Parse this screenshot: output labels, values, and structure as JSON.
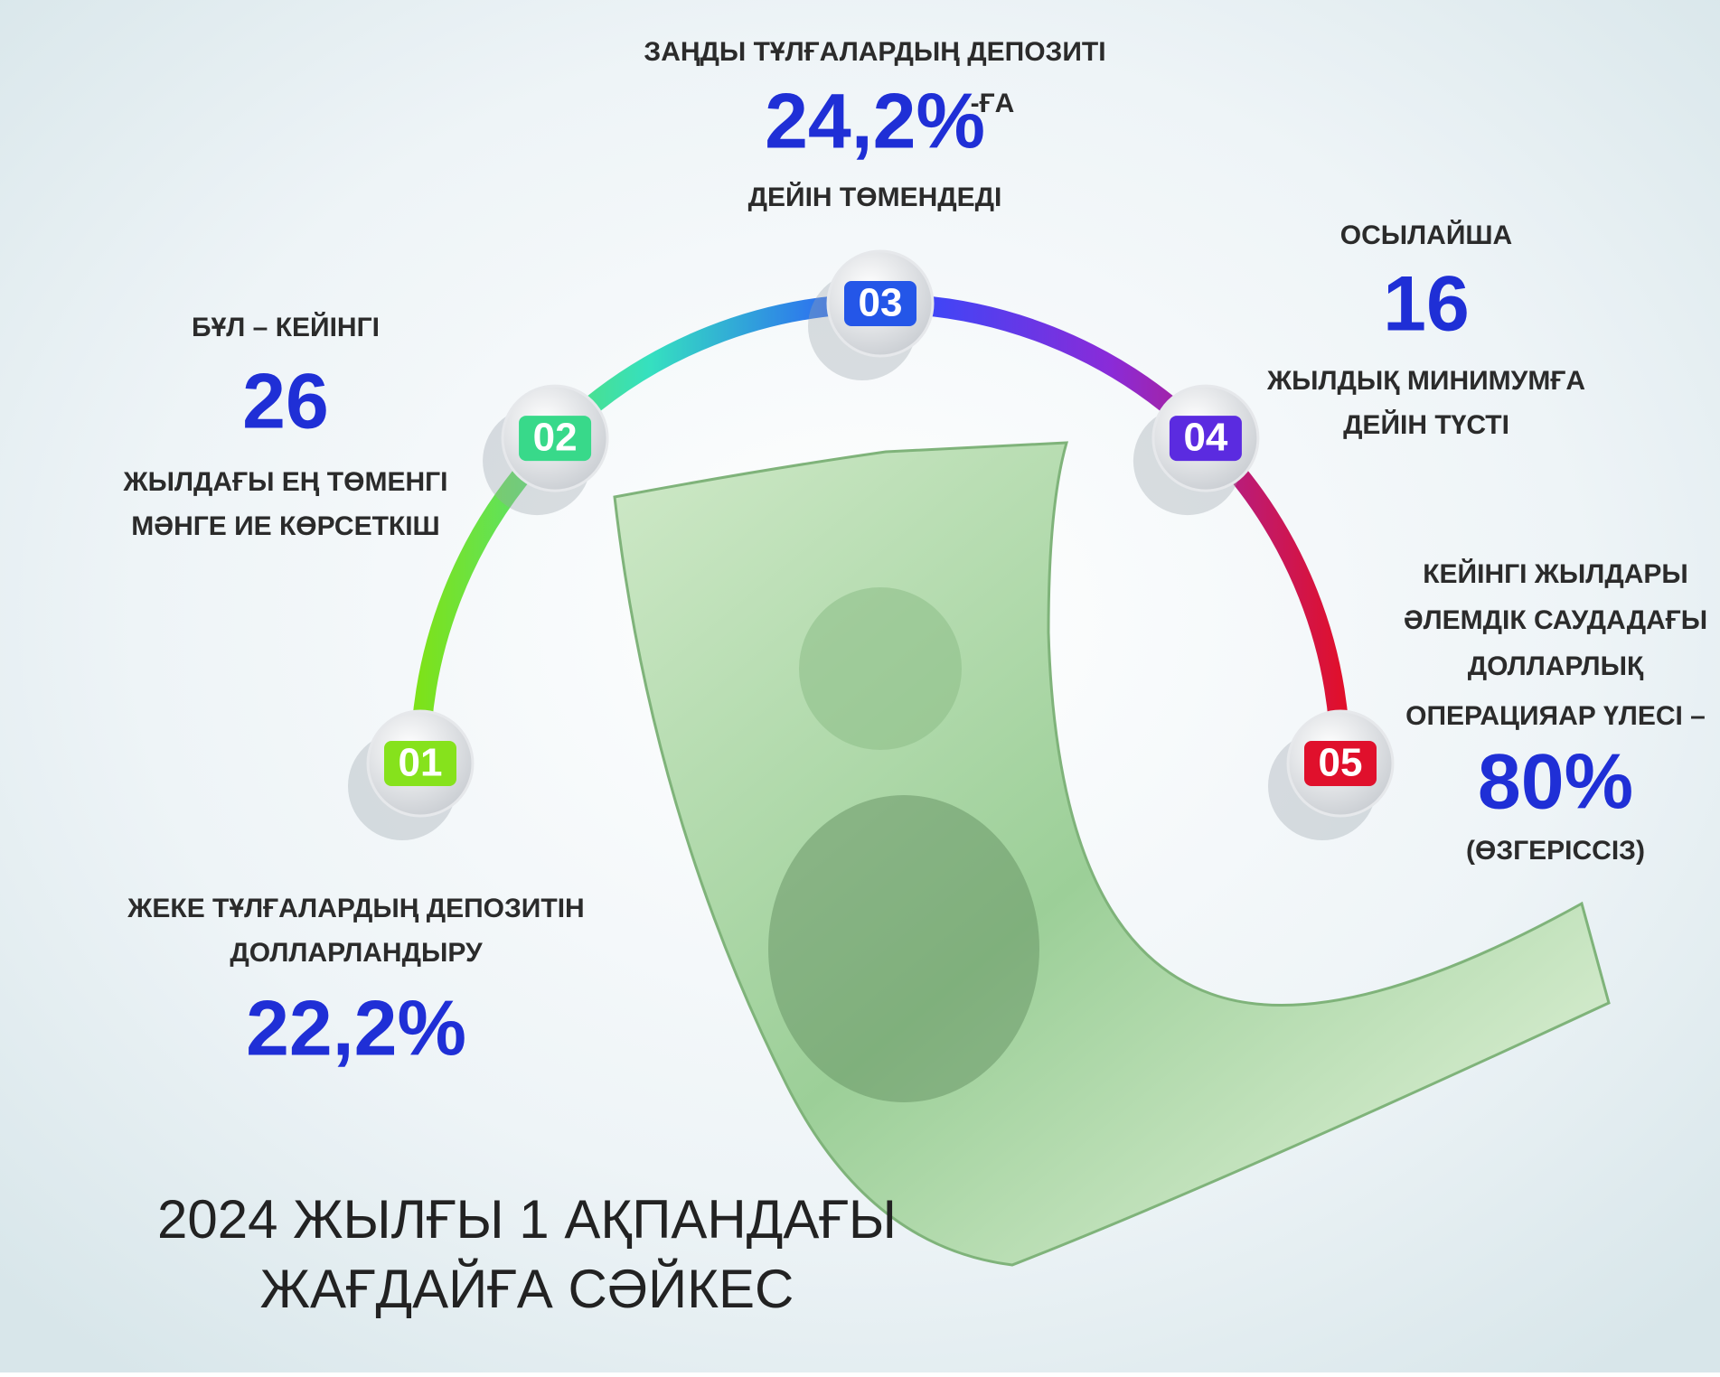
{
  "items": [
    {
      "number": "01",
      "lines": [
        "ЖЕКЕ ТҰЛҒАЛАРДЫҢ ДЕПОЗИТІН",
        "ДОЛЛАРЛАНДЫРУ"
      ],
      "figure": "22,2%"
    },
    {
      "number": "02",
      "intro": "БҰЛ – КЕЙІНГІ",
      "figure": "26",
      "lines": [
        "ЖЫЛДАҒЫ ЕҢ ТӨМЕНГІ",
        "МӘНГЕ ИЕ КӨРСЕТКІШ"
      ]
    },
    {
      "number": "03",
      "intro": "ЗАҢДЫ ТҰЛҒАЛАРДЫҢ ДЕПОЗИТІ",
      "figure": "24,2%",
      "suffix": "-ҒА",
      "lines": [
        "ДЕЙІН ТӨМЕНДЕДІ"
      ]
    },
    {
      "number": "04",
      "intro": "ОСЫЛАЙША",
      "figure": "16",
      "lines": [
        "ЖЫЛДЫҚ МИНИМУМҒА",
        "ДЕЙІН ТҮСТІ"
      ]
    },
    {
      "number": "05",
      "lines": [
        "КЕЙІНГІ ЖЫЛДАРЫ",
        "ӘЛЕМДІК САУДАДАҒЫ",
        "ДОЛЛАРЛЫҚ",
        "ОПЕРАЦИЯАР ҮЛЕСІ –"
      ],
      "figure": "80%",
      "note": "(ӨЗГЕРІССІЗ)"
    }
  ],
  "footer": [
    "2024 ЖЫЛҒЫ 1 АҚПАНДАҒЫ",
    "ЖАҒДАЙҒА СӘЙКЕС"
  ]
}
